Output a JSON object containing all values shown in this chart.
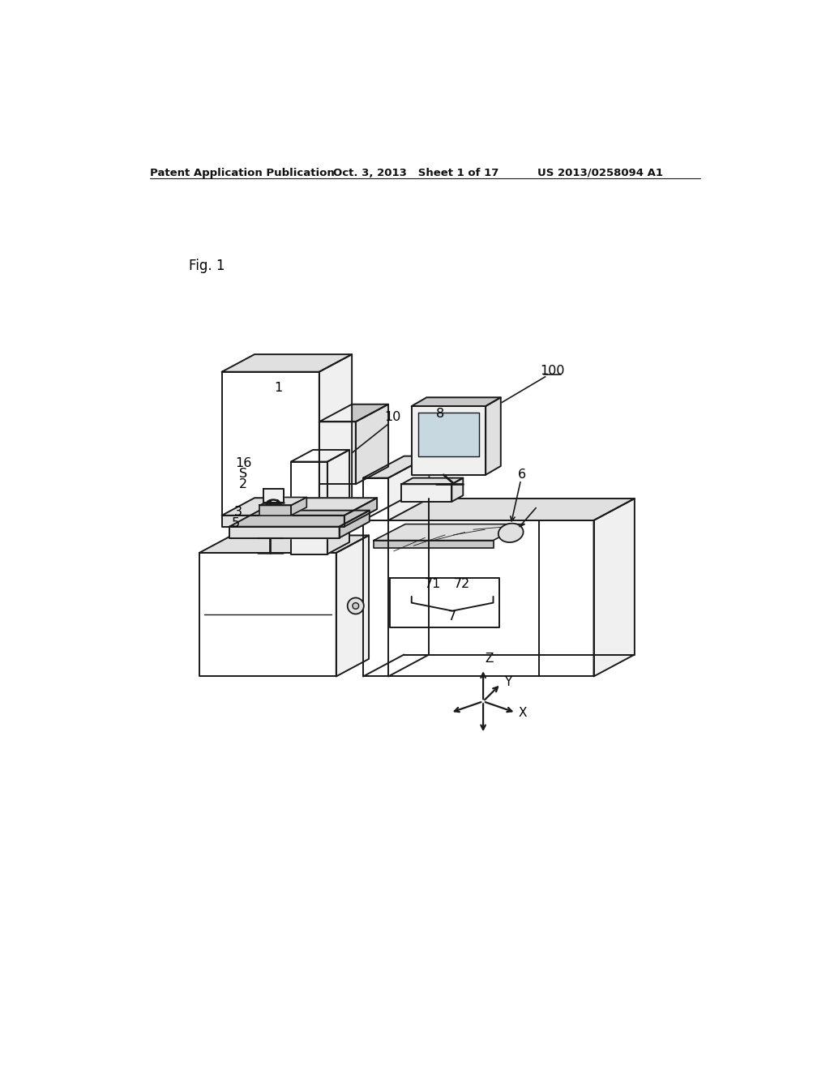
{
  "background_color": "#ffffff",
  "header_left": "Patent Application Publication",
  "header_mid": "Oct. 3, 2013   Sheet 1 of 17",
  "header_right": "US 2013/0258094 A1",
  "fig_label": "Fig. 1",
  "line_color": "#1a1a1a",
  "fill_white": "#ffffff",
  "fill_light": "#f0f0f0",
  "fill_mid": "#e0e0e0",
  "fill_dark": "#c8c8c8",
  "fill_side": "#d8d8d8"
}
